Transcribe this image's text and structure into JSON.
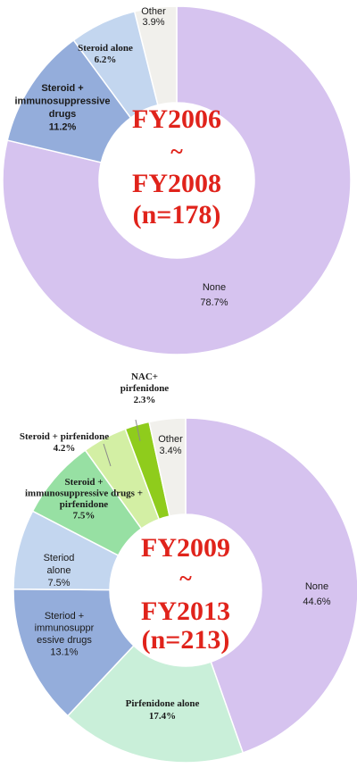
{
  "colors": {
    "none": "#d6c3ef",
    "steroid_immuno": "#94addb",
    "steroid_alone": "#c3d6ef",
    "other": "#f1f0ec",
    "pirfenidone_alone": "#c9efd9",
    "steroid_immuno_pirf": "#97e0a3",
    "steroid_pirf": "#d3efa4",
    "nac_pirf": "#8fcc1c",
    "center_text": "#e0231b"
  },
  "chart_data": [
    {
      "type": "pie",
      "donut": true,
      "center_lines": [
        "FY2006",
        "~",
        "FY2008",
        "(n=178)"
      ],
      "legend": "none",
      "slices": [
        {
          "key": "none",
          "label_lines": [
            "None",
            "78.7%"
          ],
          "value": 78.7
        },
        {
          "key": "steroid_immuno",
          "label_lines": [
            "Steroid +",
            "immunosuppressive",
            "drugs",
            "11.2%"
          ],
          "value": 11.2
        },
        {
          "key": "steroid_alone",
          "label_lines": [
            "Steroid alone",
            "6.2%"
          ],
          "value": 6.2
        },
        {
          "key": "other",
          "label_lines": [
            "Other",
            "3.9%"
          ],
          "value": 3.9
        }
      ]
    },
    {
      "type": "pie",
      "donut": true,
      "center_lines": [
        "FY2009",
        "~",
        "FY2013",
        "(n=213)"
      ],
      "legend": "none",
      "slices": [
        {
          "key": "none",
          "label_lines": [
            "None",
            "44.6%"
          ],
          "value": 44.6
        },
        {
          "key": "pirfenidone_alone",
          "label_lines": [
            "Pirfenidone alone",
            "17.4%"
          ],
          "value": 17.4
        },
        {
          "key": "steroid_immuno",
          "label_lines": [
            "Steriod +",
            "immunosuppr",
            "essive drugs",
            "13.1%"
          ],
          "value": 13.1
        },
        {
          "key": "steroid_alone",
          "label_lines": [
            "Steriod",
            "alone",
            "7.5%"
          ],
          "value": 7.5
        },
        {
          "key": "steroid_immuno_pirf",
          "label_lines": [
            "Steroid +",
            "immunosuppressive drugs +",
            "pirfenidone",
            "7.5%"
          ],
          "value": 7.5
        },
        {
          "key": "steroid_pirf",
          "label_lines": [
            "Steroid + pirfenidone",
            "4.2%"
          ],
          "value": 4.2
        },
        {
          "key": "nac_pirf",
          "label_lines": [
            "NAC+",
            "pirfenidone",
            "2.3%"
          ],
          "value": 2.3
        },
        {
          "key": "other",
          "label_lines": [
            "Other",
            "3.4%"
          ],
          "value": 3.4
        }
      ]
    }
  ]
}
